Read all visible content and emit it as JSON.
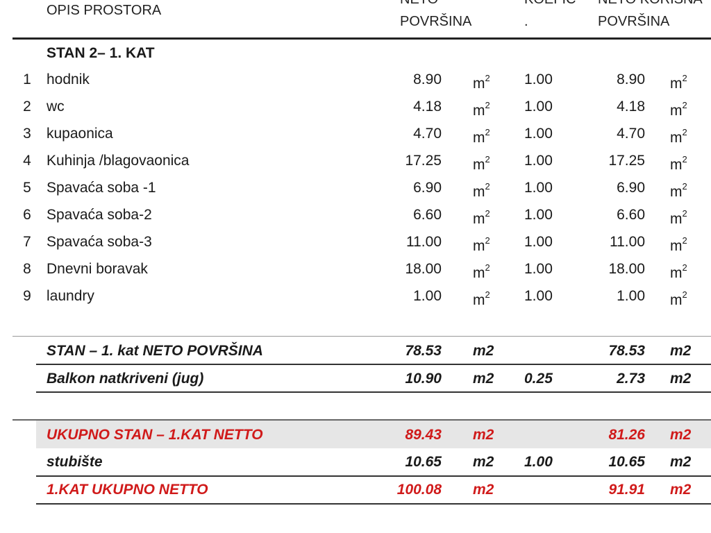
{
  "header": {
    "opis": "OPIS PROSTORA",
    "neto_line1": "NETO",
    "neto_line2": "POVRŠINA",
    "koef_line1": "KOEFIC",
    "koef_line2": ".",
    "korisna_line1": "NETO KORISNA",
    "korisna_line2": "POVRŠINA"
  },
  "section_title": "STAN 2– 1. KAT",
  "rooms": [
    {
      "no": "1",
      "name": "hodnik",
      "neto": "8.90",
      "unit": "m",
      "koef": "1.00",
      "korisna": "8.90"
    },
    {
      "no": "2",
      "name": "wc",
      "neto": "4.18",
      "unit": "m",
      "koef": "1.00",
      "korisna": "4.18"
    },
    {
      "no": "3",
      "name": "kupaonica",
      "neto": "4.70",
      "unit": "m",
      "koef": "1.00",
      "korisna": "4.70"
    },
    {
      "no": "4",
      "name": "Kuhinja /blagovaonica",
      "neto": "17.25",
      "unit": "m",
      "koef": "1.00",
      "korisna": "17.25"
    },
    {
      "no": "5",
      "name": "Spavaća soba -1",
      "neto": "6.90",
      "unit": "m",
      "koef": "1.00",
      "korisna": "6.90"
    },
    {
      "no": "6",
      "name": "Spavaća soba-2",
      "neto": "6.60",
      "unit": "m",
      "koef": "1.00",
      "korisna": "6.60"
    },
    {
      "no": "7",
      "name": "Spavaća soba-3",
      "neto": "11.00",
      "unit": "m",
      "koef": "1.00",
      "korisna": "11.00"
    },
    {
      "no": "8",
      "name": "Dnevni boravak",
      "neto": "18.00",
      "unit": "m",
      "koef": "1.00",
      "korisna": "18.00"
    },
    {
      "no": "9",
      "name": "laundry",
      "neto": "1.00",
      "unit": "m",
      "koef": "1.00",
      "korisna": "1.00"
    }
  ],
  "unit_sup": "2",
  "summary": [
    {
      "name": "STAN – 1. kat NETO POVRŠINA",
      "neto": "78.53",
      "unit": "m2",
      "koef": "",
      "korisna": "78.53",
      "unit2": "m2",
      "red": false
    },
    {
      "name": "Balkon natkriveni (jug)",
      "neto": "10.90",
      "unit": "m2",
      "koef": "0.25",
      "korisna": "2.73",
      "unit2": "m2",
      "red": false
    },
    {
      "name": "UKUPNO STAN – 1.KAT NETTO",
      "neto": "89.43",
      "unit": "m2",
      "koef": "",
      "korisna": "81.26",
      "unit2": "m2",
      "red": true
    },
    {
      "name": "stubište",
      "neto": "10.65",
      "unit": "m2",
      "koef": "1.00",
      "korisna": "10.65",
      "unit2": "m2",
      "red": false
    },
    {
      "name": "1.KAT UKUPNO NETTO",
      "neto": "100.08",
      "unit": "m2",
      "koef": "",
      "korisna": "91.91",
      "unit2": "m2",
      "red": true
    }
  ],
  "colors": {
    "red": "#d01a1a",
    "highlight": "#e6e6e6"
  }
}
